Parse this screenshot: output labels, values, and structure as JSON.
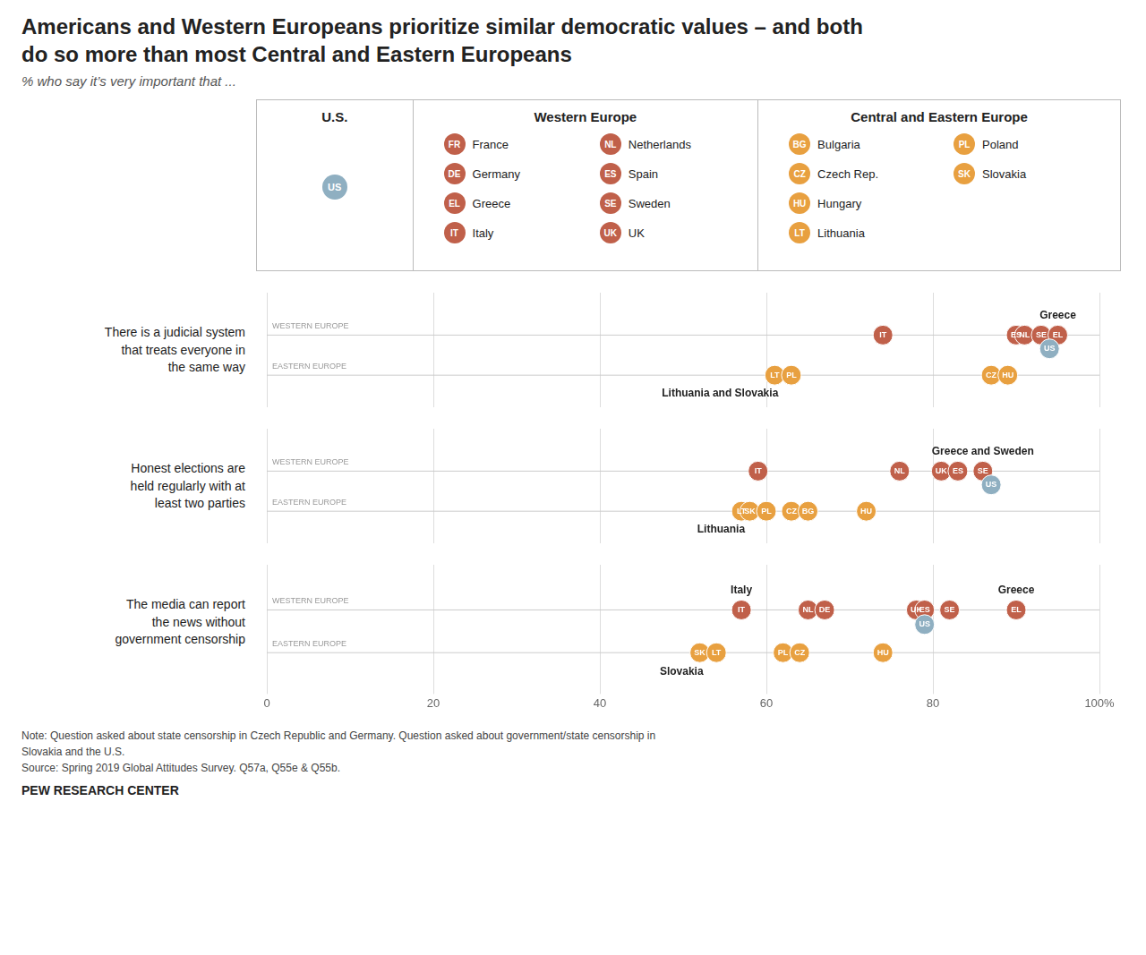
{
  "chart_data": {
    "type": "dot",
    "title": "Americans and Western Europeans prioritize similar democratic values – and both\ndo so more than most Central and Eastern Europeans",
    "subtitle": "% who say it’s very important that ...",
    "notes": [
      "Note: Question asked about state censorship in Czech Republic and Germany. Question asked about government/state censorship in",
      "Slovakia and the U.S.",
      "Source: Spring 2019 Global Attitudes Survey. Q57a, Q55e & Q55b."
    ],
    "source": "PEW RESEARCH CENTER",
    "xlim": [
      0,
      100
    ],
    "xticks": [
      0,
      20,
      40,
      60,
      80,
      {
        "value": 100,
        "label": "100%"
      }
    ],
    "grid": true,
    "key": [
      {
        "name": "U.S.",
        "color": "#8fafc1",
        "rows": [
          [
            {
              "code": "US"
            }
          ]
        ]
      },
      {
        "name": "Western Europe",
        "color": "#c0604a",
        "rows": [
          [
            {
              "code": "FR",
              "label": "France"
            },
            {
              "code": "NL",
              "label": "Netherlands"
            }
          ],
          [
            {
              "code": "DE",
              "label": "Germany"
            },
            {
              "code": "ES",
              "label": "Spain"
            }
          ],
          [
            {
              "code": "EL",
              "label": "Greece"
            },
            {
              "code": "SE",
              "label": "Sweden"
            }
          ],
          [
            {
              "code": "IT",
              "label": "Italy"
            },
            {
              "code": "UK",
              "label": "UK"
            }
          ]
        ]
      },
      {
        "name": "Central and Eastern Europe",
        "color": "#e8a040",
        "rows": [
          [
            {
              "code": "BG",
              "label": "Bulgaria"
            },
            {
              "code": "PL",
              "label": "Poland"
            }
          ],
          [
            {
              "code": "CZ",
              "label": "Czech Rep."
            },
            {
              "code": "SK",
              "label": "Slovakia"
            }
          ],
          [
            {
              "code": "HU",
              "label": "Hungary"
            }
          ],
          [
            {
              "code": "LT",
              "label": "Lithuania"
            }
          ]
        ]
      }
    ],
    "panels": [
      {
        "title": "There is a judicial system\nthat treats everyone in\nthe same way",
        "series": [
          {
            "name": "WESTERN EUROPE",
            "color": "#c0604a",
            "x": [
              74,
              90,
              91,
              93,
              95
            ],
            "labels": [
              "IT",
              "ES",
              "NL",
              "SE",
              "EL"
            ]
          },
          {
            "name": "US",
            "color": "#8fafc1",
            "x": [
              94
            ]
          },
          {
            "name": "EASTERN EUROPE",
            "color": "#e8a040",
            "x": [
              61,
              63,
              87,
              89
            ],
            "labels": [
              "LT",
              "PL",
              "CZ",
              "HU"
            ]
          }
        ],
        "annotations": [
          {
            "text": "Greece",
            "x": 95,
            "series": "WESTERN EUROPE"
          },
          {
            "text": "Lithuania and Slovakia",
            "x": 61,
            "series": "EASTERN EUROPE"
          }
        ]
      },
      {
        "title": "Honest elections are\nheld regularly with at\nleast two parties",
        "series": [
          {
            "name": "WESTERN EUROPE",
            "color": "#c0604a",
            "x": [
              59,
              76,
              81,
              83,
              86
            ],
            "labels": [
              "IT",
              "NL",
              "UK",
              "ES",
              "SE"
            ]
          },
          {
            "name": "US",
            "color": "#8fafc1",
            "x": [
              87
            ]
          },
          {
            "name": "EASTERN EUROPE",
            "color": "#e8a040",
            "x": [
              57,
              58,
              60,
              63,
              65,
              72
            ],
            "labels": [
              "LT",
              "SK",
              "PL",
              "CZ",
              "BG",
              "HU"
            ]
          }
        ],
        "annotations": [
          {
            "text": "Greece and Sweden",
            "x": 86,
            "series": "WESTERN EUROPE"
          },
          {
            "text": "Lithuania",
            "x": 57,
            "series": "EASTERN EUROPE"
          }
        ]
      },
      {
        "title": "The media can report\nthe news without\ngovernment censorship",
        "series": [
          {
            "name": "WESTERN EUROPE",
            "color": "#c0604a",
            "x": [
              57,
              65,
              67,
              78,
              79,
              82,
              90
            ],
            "labels": [
              "IT",
              "NL",
              "DE",
              "UK",
              "ES",
              "SE",
              "EL"
            ]
          },
          {
            "name": "US",
            "color": "#8fafc1",
            "x": [
              79
            ]
          },
          {
            "name": "EASTERN EUROPE",
            "color": "#e8a040",
            "x": [
              52,
              54,
              62,
              64,
              74
            ],
            "labels": [
              "SK",
              "LT",
              "PL",
              "CZ",
              "HU"
            ]
          }
        ],
        "annotations": [
          {
            "text": "Italy",
            "x": 57,
            "series": "WESTERN EUROPE"
          },
          {
            "text": "Greece",
            "x": 90,
            "series": "WESTERN EUROPE"
          },
          {
            "text": "Slovakia",
            "x": 52,
            "series": "EASTERN EUROPE"
          }
        ]
      }
    ]
  }
}
